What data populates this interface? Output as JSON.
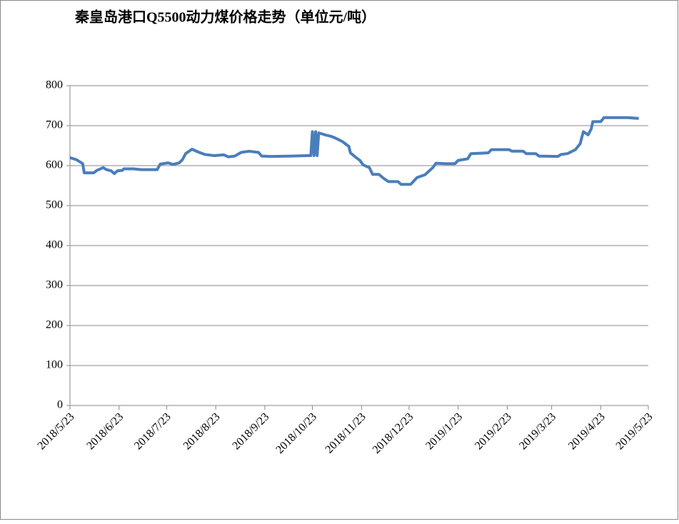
{
  "chart_data": {
    "type": "line",
    "title": "秦皇岛港口Q5500动力煤价格走势（单位元/吨）",
    "x": [
      "2018/5/23",
      "2018/5/27",
      "2018/5/31",
      "2018/6/1",
      "2018/6/7",
      "2018/6/9",
      "2018/6/13",
      "2018/6/15",
      "2018/6/18",
      "2018/6/20",
      "2018/6/22",
      "2018/6/25",
      "2018/6/26",
      "2018/7/2",
      "2018/7/7",
      "2018/7/17",
      "2018/7/19",
      "2018/7/24",
      "2018/7/27",
      "2018/7/31",
      "2018/8/2",
      "2018/8/4",
      "2018/8/8",
      "2018/8/12",
      "2018/8/16",
      "2018/8/22",
      "2018/8/28",
      "2018/8/31",
      "2018/9/4",
      "2018/9/8",
      "2018/9/13",
      "2018/9/19",
      "2018/9/21",
      "2018/9/27",
      "2018/10/10",
      "2018/10/19",
      "2018/10/22",
      "2018/10/23",
      "2018/10/24",
      "2018/10/25",
      "2018/10/26",
      "2018/10/27",
      "2018/10/31",
      "2018/11/4",
      "2018/11/7",
      "2018/11/11",
      "2018/11/15",
      "2018/11/16",
      "2018/11/19",
      "2018/11/22",
      "2018/11/24",
      "2018/11/28",
      "2018/11/30",
      "2018/12/4",
      "2018/12/7",
      "2018/12/10",
      "2018/12/16",
      "2018/12/18",
      "2018/12/24",
      "2018/12/28",
      "2019/1/2",
      "2019/1/7",
      "2019/1/9",
      "2019/1/15",
      "2019/1/21",
      "2019/1/23",
      "2019/1/29",
      "2019/1/31",
      "2019/2/11",
      "2019/2/13",
      "2019/2/24",
      "2019/2/26",
      "2019/3/5",
      "2019/3/7",
      "2019/3/13",
      "2019/3/15",
      "2019/3/27",
      "2019/3/29",
      "2019/4/2",
      "2019/4/7",
      "2019/4/10",
      "2019/4/12",
      "2019/4/15",
      "2019/4/17",
      "2019/4/18",
      "2019/4/23",
      "2019/4/25",
      "2019/5/10",
      "2019/5/17"
    ],
    "values": [
      620,
      615,
      605,
      582,
      582,
      588,
      595,
      590,
      587,
      580,
      587,
      588,
      592,
      592,
      590,
      590,
      604,
      607,
      603,
      607,
      615,
      630,
      641,
      634,
      628,
      625,
      627,
      622,
      624,
      633,
      636,
      633,
      624,
      623,
      624,
      625,
      625,
      685,
      625,
      685,
      625,
      682,
      677,
      673,
      668,
      660,
      648,
      632,
      622,
      613,
      602,
      595,
      578,
      578,
      568,
      560,
      560,
      553,
      553,
      570,
      577,
      595,
      606,
      605,
      605,
      613,
      617,
      630,
      632,
      640,
      640,
      636,
      636,
      630,
      630,
      624,
      623,
      628,
      630,
      640,
      655,
      685,
      677,
      692,
      710,
      710,
      720,
      720,
      718
    ],
    "color": "#4a7ebb",
    "xlim": [
      "2018/5/23",
      "2019/5/23"
    ],
    "xticks": [
      "2018/5/23",
      "2018/6/23",
      "2018/7/23",
      "2018/8/23",
      "2018/9/23",
      "2018/10/23",
      "2018/11/23",
      "2018/12/23",
      "2019/1/23",
      "2019/2/23",
      "2019/3/23",
      "2019/4/23",
      "2019/5/23"
    ],
    "ylim": [
      0,
      800
    ],
    "yticks": [
      0,
      100,
      200,
      300,
      400,
      500,
      600,
      700,
      800
    ],
    "grid": true
  }
}
